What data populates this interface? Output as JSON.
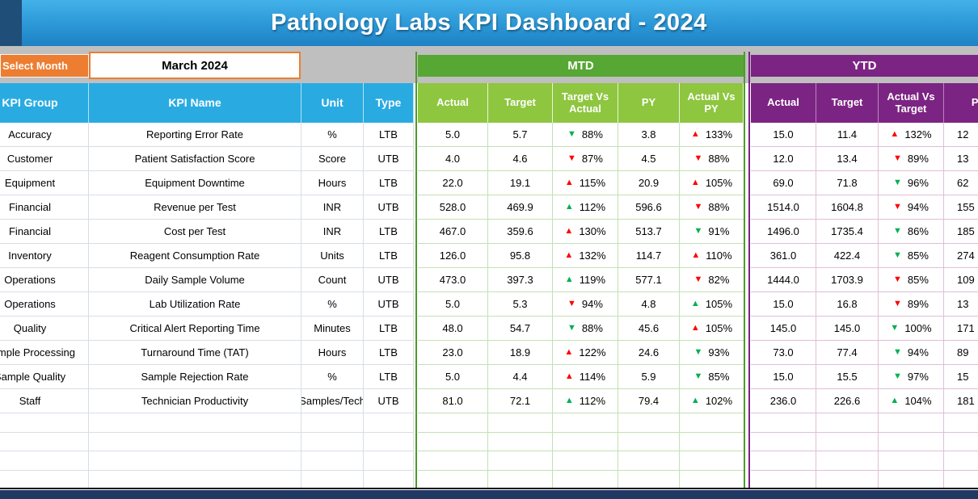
{
  "title": "Pathology Labs KPI Dashboard - 2024",
  "controls": {
    "select_month_label": "Select Month",
    "month_value": "March 2024"
  },
  "sections": {
    "mtd_label": "MTD",
    "ytd_label": "YTD"
  },
  "columns": {
    "left": [
      "KPI Group",
      "KPI Name",
      "Unit",
      "Type"
    ],
    "mtd": [
      "Actual",
      "Target",
      "Target Vs Actual",
      "PY",
      "Actual Vs PY"
    ],
    "ytd": [
      "Actual",
      "Target",
      "Actual Vs Target",
      "PY"
    ]
  },
  "colors": {
    "banner_blue": "#2B97D6",
    "left_header_blue": "#29ABE2",
    "accent_orange": "#ED7D31",
    "mtd_band_green": "#56A733",
    "mtd_header_green": "#8EC63F",
    "ytd_purple": "#7C2483",
    "trend_good_green": "#00B050",
    "trend_bad_red": "#FF0000",
    "bottom_bar_navy": "#1F3864"
  },
  "empty_row_count": 4,
  "rows": [
    {
      "group": "Accuracy",
      "name": "Reporting Error Rate",
      "unit": "%",
      "type": "LTB",
      "mtd": {
        "actual": "5.0",
        "target": "5.7",
        "tva": {
          "dir": "down",
          "color": "green",
          "value": "88%"
        },
        "py": "3.8",
        "avpy": {
          "dir": "up",
          "color": "red",
          "value": "133%"
        }
      },
      "ytd": {
        "actual": "15.0",
        "target": "11.4",
        "avt": {
          "dir": "up",
          "color": "red",
          "value": "132%"
        },
        "py": "12"
      }
    },
    {
      "group": "Customer",
      "name": "Patient Satisfaction Score",
      "unit": "Score",
      "type": "UTB",
      "mtd": {
        "actual": "4.0",
        "target": "4.6",
        "tva": {
          "dir": "down",
          "color": "red",
          "value": "87%"
        },
        "py": "4.5",
        "avpy": {
          "dir": "down",
          "color": "red",
          "value": "88%"
        }
      },
      "ytd": {
        "actual": "12.0",
        "target": "13.4",
        "avt": {
          "dir": "down",
          "color": "red",
          "value": "89%"
        },
        "py": "13"
      }
    },
    {
      "group": "Equipment",
      "name": "Equipment Downtime",
      "unit": "Hours",
      "type": "LTB",
      "mtd": {
        "actual": "22.0",
        "target": "19.1",
        "tva": {
          "dir": "up",
          "color": "red",
          "value": "115%"
        },
        "py": "20.9",
        "avpy": {
          "dir": "up",
          "color": "red",
          "value": "105%"
        }
      },
      "ytd": {
        "actual": "69.0",
        "target": "71.8",
        "avt": {
          "dir": "down",
          "color": "green",
          "value": "96%"
        },
        "py": "62"
      }
    },
    {
      "group": "Financial",
      "name": "Revenue per Test",
      "unit": "INR",
      "type": "UTB",
      "mtd": {
        "actual": "528.0",
        "target": "469.9",
        "tva": {
          "dir": "up",
          "color": "green",
          "value": "112%"
        },
        "py": "596.6",
        "avpy": {
          "dir": "down",
          "color": "red",
          "value": "88%"
        }
      },
      "ytd": {
        "actual": "1514.0",
        "target": "1604.8",
        "avt": {
          "dir": "down",
          "color": "red",
          "value": "94%"
        },
        "py": "155"
      }
    },
    {
      "group": "Financial",
      "name": "Cost per Test",
      "unit": "INR",
      "type": "LTB",
      "mtd": {
        "actual": "467.0",
        "target": "359.6",
        "tva": {
          "dir": "up",
          "color": "red",
          "value": "130%"
        },
        "py": "513.7",
        "avpy": {
          "dir": "down",
          "color": "green",
          "value": "91%"
        }
      },
      "ytd": {
        "actual": "1496.0",
        "target": "1735.4",
        "avt": {
          "dir": "down",
          "color": "green",
          "value": "86%"
        },
        "py": "185"
      }
    },
    {
      "group": "Inventory",
      "name": "Reagent Consumption Rate",
      "unit": "Units",
      "type": "LTB",
      "mtd": {
        "actual": "126.0",
        "target": "95.8",
        "tva": {
          "dir": "up",
          "color": "red",
          "value": "132%"
        },
        "py": "114.7",
        "avpy": {
          "dir": "up",
          "color": "red",
          "value": "110%"
        }
      },
      "ytd": {
        "actual": "361.0",
        "target": "422.4",
        "avt": {
          "dir": "down",
          "color": "green",
          "value": "85%"
        },
        "py": "274"
      }
    },
    {
      "group": "Operations",
      "name": "Daily Sample Volume",
      "unit": "Count",
      "type": "UTB",
      "mtd": {
        "actual": "473.0",
        "target": "397.3",
        "tva": {
          "dir": "up",
          "color": "green",
          "value": "119%"
        },
        "py": "577.1",
        "avpy": {
          "dir": "down",
          "color": "red",
          "value": "82%"
        }
      },
      "ytd": {
        "actual": "1444.0",
        "target": "1703.9",
        "avt": {
          "dir": "down",
          "color": "red",
          "value": "85%"
        },
        "py": "109"
      }
    },
    {
      "group": "Operations",
      "name": "Lab Utilization Rate",
      "unit": "%",
      "type": "UTB",
      "mtd": {
        "actual": "5.0",
        "target": "5.3",
        "tva": {
          "dir": "down",
          "color": "red",
          "value": "94%"
        },
        "py": "4.8",
        "avpy": {
          "dir": "up",
          "color": "green",
          "value": "105%"
        }
      },
      "ytd": {
        "actual": "15.0",
        "target": "16.8",
        "avt": {
          "dir": "down",
          "color": "red",
          "value": "89%"
        },
        "py": "13"
      }
    },
    {
      "group": "Quality",
      "name": "Critical Alert Reporting Time",
      "unit": "Minutes",
      "type": "LTB",
      "mtd": {
        "actual": "48.0",
        "target": "54.7",
        "tva": {
          "dir": "down",
          "color": "green",
          "value": "88%"
        },
        "py": "45.6",
        "avpy": {
          "dir": "up",
          "color": "red",
          "value": "105%"
        }
      },
      "ytd": {
        "actual": "145.0",
        "target": "145.0",
        "avt": {
          "dir": "down",
          "color": "green",
          "value": "100%"
        },
        "py": "171"
      }
    },
    {
      "group": "Sample Processing",
      "name": "Turnaround Time (TAT)",
      "unit": "Hours",
      "type": "LTB",
      "mtd": {
        "actual": "23.0",
        "target": "18.9",
        "tva": {
          "dir": "up",
          "color": "red",
          "value": "122%"
        },
        "py": "24.6",
        "avpy": {
          "dir": "down",
          "color": "green",
          "value": "93%"
        }
      },
      "ytd": {
        "actual": "73.0",
        "target": "77.4",
        "avt": {
          "dir": "down",
          "color": "green",
          "value": "94%"
        },
        "py": "89"
      }
    },
    {
      "group": "Sample Quality",
      "name": "Sample Rejection Rate",
      "unit": "%",
      "type": "LTB",
      "mtd": {
        "actual": "5.0",
        "target": "4.4",
        "tva": {
          "dir": "up",
          "color": "red",
          "value": "114%"
        },
        "py": "5.9",
        "avpy": {
          "dir": "down",
          "color": "green",
          "value": "85%"
        }
      },
      "ytd": {
        "actual": "15.0",
        "target": "15.5",
        "avt": {
          "dir": "down",
          "color": "green",
          "value": "97%"
        },
        "py": "15"
      }
    },
    {
      "group": "Staff",
      "name": "Technician Productivity",
      "unit": "Samples/Tech",
      "type": "UTB",
      "mtd": {
        "actual": "81.0",
        "target": "72.1",
        "tva": {
          "dir": "up",
          "color": "green",
          "value": "112%"
        },
        "py": "79.4",
        "avpy": {
          "dir": "up",
          "color": "green",
          "value": "102%"
        }
      },
      "ytd": {
        "actual": "236.0",
        "target": "226.6",
        "avt": {
          "dir": "up",
          "color": "green",
          "value": "104%"
        },
        "py": "181"
      }
    }
  ]
}
